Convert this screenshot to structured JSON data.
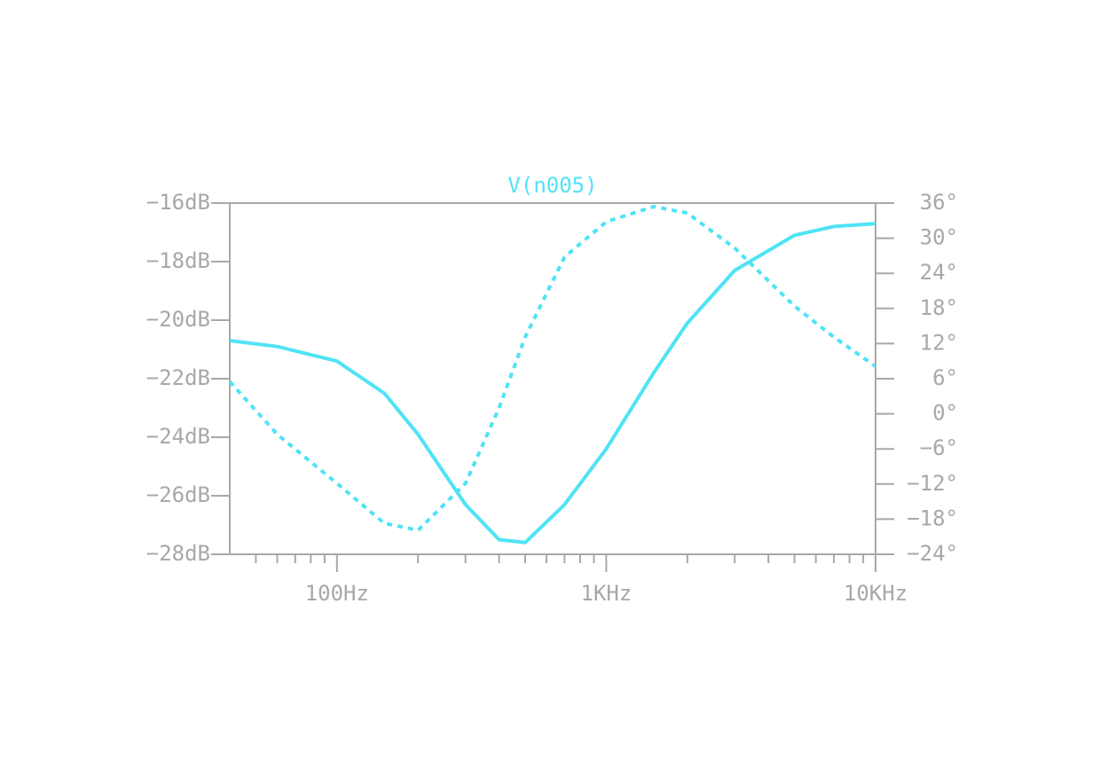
{
  "chart_data": {
    "type": "line",
    "title": "V(n005)",
    "title_color": "#4fe3f5",
    "xscale": "log",
    "x": [
      40,
      60,
      100,
      150,
      200,
      300,
      400,
      500,
      700,
      1000,
      1500,
      2000,
      3000,
      5000,
      7000,
      10000
    ],
    "series": [
      {
        "color": "#4fe3f5",
        "style": "solid",
        "axis": "y",
        "values": [
          -20.7,
          -20.9,
          -21.4,
          -22.5,
          -23.9,
          -26.3,
          -27.5,
          -27.6,
          -26.3,
          -24.4,
          -21.8,
          -20.1,
          -18.3,
          -17.1,
          -16.8,
          -16.7
        ]
      },
      {
        "color": "#4fe3f5",
        "style": "dotted",
        "axis": "y2",
        "values": [
          5.5,
          -3.5,
          -11.9,
          -18.7,
          -19.9,
          -11.9,
          1,
          13.1,
          26.8,
          32.8,
          35.4,
          34.3,
          28.3,
          18.4,
          13.1,
          8.1
        ]
      }
    ],
    "xlim": [
      40,
      10000
    ],
    "xticks": [
      {
        "value": 100,
        "label": "100Hz"
      },
      {
        "value": 1000,
        "label": "1KHz"
      },
      {
        "value": 10000,
        "label": "10KHz"
      }
    ],
    "xminorticks": [
      50,
      60,
      70,
      80,
      90,
      200,
      300,
      400,
      500,
      600,
      700,
      800,
      900,
      2000,
      3000,
      4000,
      5000,
      6000,
      7000,
      8000,
      9000
    ],
    "ylim": [
      -28,
      -16
    ],
    "yticks": [
      {
        "value": -16,
        "label": "−16dB"
      },
      {
        "value": -18,
        "label": "−18dB"
      },
      {
        "value": -20,
        "label": "−20dB"
      },
      {
        "value": -22,
        "label": "−22dB"
      },
      {
        "value": -24,
        "label": "−24dB"
      },
      {
        "value": -26,
        "label": "−26dB"
      },
      {
        "value": -28,
        "label": "−28dB"
      }
    ],
    "y2lim": [
      -24,
      36
    ],
    "y2ticks": [
      {
        "value": 36,
        "label": "36°"
      },
      {
        "value": 30,
        "label": "30°"
      },
      {
        "value": 24,
        "label": "24°"
      },
      {
        "value": 18,
        "label": "18°"
      },
      {
        "value": 12,
        "label": "12°"
      },
      {
        "value": 6,
        "label": "6°"
      },
      {
        "value": 0,
        "label": "0°"
      },
      {
        "value": -6,
        "label": "−6°"
      },
      {
        "value": -12,
        "label": "−12°"
      },
      {
        "value": -18,
        "label": "−18°"
      },
      {
        "value": -24,
        "label": "−24°"
      }
    ]
  }
}
